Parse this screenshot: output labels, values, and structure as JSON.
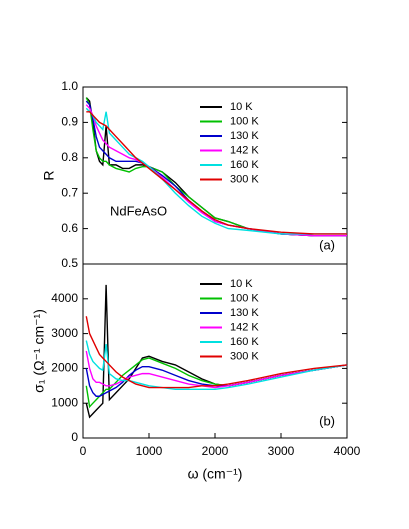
{
  "chart_data": [
    {
      "type": "line",
      "y_label": "R",
      "annotations": [
        "NdFeAsO",
        "(a)"
      ],
      "legend": "upper right",
      "x": [
        50,
        100,
        150,
        200,
        250,
        300,
        350,
        400,
        500,
        600,
        700,
        800,
        900,
        1000,
        1200,
        1400,
        1600,
        1800,
        2000,
        2200,
        2500,
        3000,
        3500,
        4000
      ],
      "xlim": [
        0,
        4000
      ],
      "ylim": [
        0.5,
        1.0
      ],
      "yticks": [
        0.5,
        0.6,
        0.7,
        0.8,
        0.9,
        {
          "value": 1,
          "label": "1.0"
        }
      ],
      "series": [
        {
          "name": "10 K",
          "color": "#000000",
          "values": [
            0.97,
            0.96,
            0.9,
            0.82,
            0.79,
            0.78,
            0.89,
            0.78,
            0.78,
            0.77,
            0.77,
            0.78,
            0.78,
            0.775,
            0.76,
            0.73,
            0.69,
            0.66,
            0.63,
            0.62,
            0.6,
            0.585,
            0.58,
            0.58
          ]
        },
        {
          "name": "100 K",
          "color": "#00c000",
          "values": [
            0.97,
            0.95,
            0.88,
            0.82,
            0.8,
            0.79,
            0.79,
            0.78,
            0.77,
            0.765,
            0.76,
            0.77,
            0.775,
            0.775,
            0.76,
            0.72,
            0.69,
            0.66,
            0.63,
            0.62,
            0.6,
            0.585,
            0.58,
            0.58
          ]
        },
        {
          "name": "130 K",
          "color": "#0000cc",
          "values": [
            0.96,
            0.95,
            0.91,
            0.86,
            0.83,
            0.82,
            0.81,
            0.8,
            0.79,
            0.79,
            0.79,
            0.79,
            0.785,
            0.775,
            0.75,
            0.72,
            0.68,
            0.65,
            0.62,
            0.61,
            0.6,
            0.585,
            0.58,
            0.58
          ]
        },
        {
          "name": "142 K",
          "color": "#ff00ff",
          "values": [
            0.95,
            0.94,
            0.92,
            0.89,
            0.87,
            0.85,
            0.84,
            0.83,
            0.82,
            0.81,
            0.8,
            0.795,
            0.785,
            0.775,
            0.745,
            0.71,
            0.675,
            0.645,
            0.62,
            0.61,
            0.6,
            0.585,
            0.58,
            0.58
          ]
        },
        {
          "name": "160 K",
          "color": "#00e0e0",
          "values": [
            0.94,
            0.93,
            0.92,
            0.9,
            0.89,
            0.88,
            0.93,
            0.87,
            0.85,
            0.83,
            0.81,
            0.8,
            0.79,
            0.775,
            0.74,
            0.7,
            0.665,
            0.635,
            0.615,
            0.6,
            0.595,
            0.585,
            0.585,
            0.585
          ]
        },
        {
          "name": "300 K",
          "color": "#e00000",
          "values": [
            0.93,
            0.93,
            0.92,
            0.91,
            0.9,
            0.895,
            0.89,
            0.88,
            0.86,
            0.84,
            0.82,
            0.8,
            0.785,
            0.77,
            0.74,
            0.71,
            0.68,
            0.65,
            0.625,
            0.61,
            0.6,
            0.59,
            0.585,
            0.585
          ]
        }
      ]
    },
    {
      "type": "line",
      "y_label": "σ₁ (Ω⁻¹ cm⁻¹)",
      "x_label": "ω (cm⁻¹)",
      "annotations": [
        "(b)"
      ],
      "legend": "upper right",
      "x": [
        50,
        100,
        150,
        200,
        250,
        300,
        350,
        400,
        500,
        600,
        700,
        800,
        900,
        1000,
        1200,
        1400,
        1600,
        1800,
        2000,
        2200,
        2500,
        3000,
        3500,
        4000
      ],
      "xlim": [
        0,
        4000
      ],
      "ylim": [
        0,
        5000
      ],
      "xticks": [
        0,
        1000,
        2000,
        3000,
        4000
      ],
      "yticks": [
        0,
        1000,
        2000,
        3000,
        4000
      ],
      "series": [
        {
          "name": "10 K",
          "color": "#000000",
          "values": [
            1000,
            600,
            700,
            800,
            900,
            1000,
            4400,
            1100,
            1300,
            1500,
            1700,
            2000,
            2300,
            2350,
            2200,
            2100,
            1900,
            1700,
            1550,
            1500,
            1600,
            1800,
            1950,
            2100
          ]
        },
        {
          "name": "100 K",
          "color": "#00c000",
          "values": [
            1500,
            900,
            1000,
            1100,
            1200,
            1300,
            1400,
            1400,
            1600,
            1800,
            1950,
            2100,
            2250,
            2300,
            2150,
            2000,
            1800,
            1650,
            1550,
            1500,
            1600,
            1800,
            1950,
            2100
          ]
        },
        {
          "name": "130 K",
          "color": "#0000cc",
          "values": [
            2000,
            1500,
            1300,
            1200,
            1200,
            1250,
            1300,
            1350,
            1450,
            1600,
            1800,
            1950,
            2050,
            2050,
            1950,
            1800,
            1650,
            1550,
            1500,
            1500,
            1600,
            1800,
            1950,
            2100
          ]
        },
        {
          "name": "142 K",
          "color": "#ff00ff",
          "values": [
            2500,
            2000,
            1700,
            1600,
            1600,
            1550,
            1500,
            1500,
            1550,
            1650,
            1750,
            1800,
            1850,
            1850,
            1750,
            1650,
            1550,
            1500,
            1450,
            1500,
            1600,
            1800,
            1950,
            2100
          ]
        },
        {
          "name": "160 K",
          "color": "#00e0e0",
          "values": [
            2800,
            2400,
            2200,
            2100,
            2000,
            1950,
            2700,
            1850,
            1700,
            1650,
            1650,
            1600,
            1550,
            1500,
            1450,
            1400,
            1400,
            1400,
            1400,
            1450,
            1550,
            1750,
            1950,
            2100
          ]
        },
        {
          "name": "300 K",
          "color": "#e00000",
          "values": [
            3500,
            3000,
            2800,
            2600,
            2400,
            2300,
            2200,
            2100,
            1900,
            1750,
            1650,
            1550,
            1500,
            1450,
            1450,
            1450,
            1450,
            1500,
            1500,
            1550,
            1650,
            1850,
            2000,
            2100
          ]
        }
      ]
    }
  ]
}
